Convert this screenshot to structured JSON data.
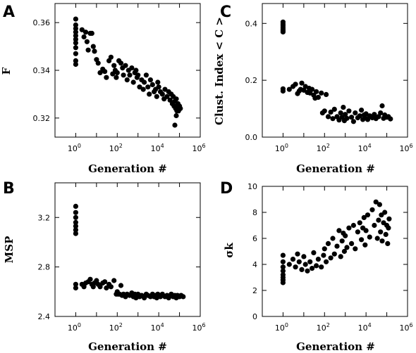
{
  "chart_data": [
    {
      "type": "scatter",
      "panel_label": "A",
      "xlabel": "Generation #",
      "ylabel": "F",
      "x_scale": "log",
      "xlim": [
        0.1,
        1000000
      ],
      "ylim": [
        0.312,
        0.368
      ],
      "xtick_exponents": [
        "0",
        "2",
        "4",
        "6"
      ],
      "ytick_values": [
        0.32,
        0.34,
        0.36
      ],
      "ytick_labels": [
        "0.32",
        "0.34",
        "0.36"
      ],
      "marker_color": "#000000",
      "points": [
        [
          1,
          0.3615
        ],
        [
          1,
          0.359
        ],
        [
          1,
          0.3575
        ],
        [
          1,
          0.356
        ],
        [
          1,
          0.3545
        ],
        [
          1,
          0.353
        ],
        [
          1,
          0.3515
        ],
        [
          1,
          0.3495
        ],
        [
          1,
          0.347
        ],
        [
          1,
          0.344
        ],
        [
          1,
          0.3425
        ],
        [
          2,
          0.357
        ],
        [
          2.5,
          0.354
        ],
        [
          3,
          0.356
        ],
        [
          3.5,
          0.352
        ],
        [
          4,
          0.3485
        ],
        [
          5,
          0.3555
        ],
        [
          6,
          0.3555
        ],
        [
          7,
          0.35
        ],
        [
          8,
          0.348
        ],
        [
          10,
          0.3445
        ],
        [
          12,
          0.343
        ],
        [
          15,
          0.339
        ],
        [
          20,
          0.3405
        ],
        [
          25,
          0.3395
        ],
        [
          30,
          0.337
        ],
        [
          40,
          0.344
        ],
        [
          50,
          0.3455
        ],
        [
          60,
          0.3385
        ],
        [
          70,
          0.342
        ],
        [
          80,
          0.34
        ],
        [
          90,
          0.337
        ],
        [
          100,
          0.339
        ],
        [
          120,
          0.344
        ],
        [
          150,
          0.343
        ],
        [
          180,
          0.341
        ],
        [
          200,
          0.338
        ],
        [
          250,
          0.342
        ],
        [
          300,
          0.336
        ],
        [
          350,
          0.34
        ],
        [
          400,
          0.338
        ],
        [
          500,
          0.341
        ],
        [
          600,
          0.335
        ],
        [
          700,
          0.339
        ],
        [
          800,
          0.34
        ],
        [
          900,
          0.337
        ],
        [
          1000,
          0.338
        ],
        [
          1200,
          0.333
        ],
        [
          1500,
          0.336
        ],
        [
          1800,
          0.332
        ],
        [
          2000,
          0.335
        ],
        [
          2500,
          0.338
        ],
        [
          3000,
          0.333
        ],
        [
          3500,
          0.33
        ],
        [
          4000,
          0.336
        ],
        [
          5000,
          0.334
        ],
        [
          6000,
          0.331
        ],
        [
          7000,
          0.332
        ],
        [
          8000,
          0.329
        ],
        [
          9000,
          0.335
        ],
        [
          10000,
          0.333
        ],
        [
          12000,
          0.331
        ],
        [
          15000,
          0.33
        ],
        [
          18000,
          0.328
        ],
        [
          20000,
          0.332
        ],
        [
          25000,
          0.329
        ],
        [
          30000,
          0.331
        ],
        [
          35000,
          0.3275
        ],
        [
          40000,
          0.33
        ],
        [
          45000,
          0.326
        ],
        [
          50000,
          0.329
        ],
        [
          55000,
          0.325
        ],
        [
          60000,
          0.327
        ],
        [
          65000,
          0.324
        ],
        [
          70000,
          0.328
        ],
        [
          75000,
          0.323
        ],
        [
          80000,
          0.325
        ],
        [
          85000,
          0.326
        ],
        [
          90000,
          0.323
        ],
        [
          100000,
          0.325
        ],
        [
          60000,
          0.317
        ],
        [
          110000,
          0.324
        ],
        [
          70000,
          0.321
        ]
      ]
    },
    {
      "type": "scatter",
      "panel_label": "B",
      "xlabel": "Generation #",
      "ylabel": "MSP",
      "x_scale": "log",
      "xlim": [
        0.1,
        1000000
      ],
      "ylim": [
        2.4,
        3.48
      ],
      "xtick_exponents": [
        "0",
        "2",
        "4",
        "6"
      ],
      "ytick_values": [
        2.4,
        2.8,
        3.2
      ],
      "ytick_labels": [
        "2.4",
        "2.8",
        "3.2"
      ],
      "marker_color": "#000000",
      "points": [
        [
          1,
          3.29
        ],
        [
          1,
          3.24
        ],
        [
          1,
          3.2
        ],
        [
          1,
          3.16
        ],
        [
          1,
          3.13
        ],
        [
          1,
          3.1
        ],
        [
          1,
          3.07
        ],
        [
          1,
          2.66
        ],
        [
          1,
          2.63
        ],
        [
          2,
          2.66
        ],
        [
          2.5,
          2.64
        ],
        [
          3,
          2.67
        ],
        [
          4,
          2.68
        ],
        [
          5,
          2.7
        ],
        [
          6,
          2.66
        ],
        [
          7,
          2.64
        ],
        [
          8,
          2.67
        ],
        [
          10,
          2.69
        ],
        [
          12,
          2.66
        ],
        [
          15,
          2.64
        ],
        [
          20,
          2.67
        ],
        [
          25,
          2.68
        ],
        [
          30,
          2.63
        ],
        [
          40,
          2.66
        ],
        [
          50,
          2.64
        ],
        [
          70,
          2.69
        ],
        [
          90,
          2.58
        ],
        [
          100,
          2.6
        ],
        [
          110,
          2.58
        ],
        [
          130,
          2.58
        ],
        [
          150,
          2.65
        ],
        [
          170,
          2.57
        ],
        [
          200,
          2.58
        ],
        [
          250,
          2.56
        ],
        [
          300,
          2.58
        ],
        [
          400,
          2.57
        ],
        [
          500,
          2.59
        ],
        [
          600,
          2.56
        ],
        [
          700,
          2.58
        ],
        [
          800,
          2.55
        ],
        [
          900,
          2.57
        ],
        [
          1000,
          2.58
        ],
        [
          1200,
          2.56
        ],
        [
          1500,
          2.57
        ],
        [
          2000,
          2.55
        ],
        [
          2500,
          2.58
        ],
        [
          3000,
          2.57
        ],
        [
          4000,
          2.56
        ],
        [
          5000,
          2.58
        ],
        [
          6000,
          2.56
        ],
        [
          7000,
          2.57
        ],
        [
          8000,
          2.55
        ],
        [
          9000,
          2.58
        ],
        [
          10000,
          2.57
        ],
        [
          12000,
          2.56
        ],
        [
          15000,
          2.58
        ],
        [
          20000,
          2.56
        ],
        [
          25000,
          2.57
        ],
        [
          30000,
          2.55
        ],
        [
          40000,
          2.58
        ],
        [
          50000,
          2.56
        ],
        [
          60000,
          2.57
        ],
        [
          70000,
          2.55
        ],
        [
          80000,
          2.57
        ],
        [
          100000,
          2.56
        ],
        [
          120000,
          2.57
        ],
        [
          150000,
          2.56
        ]
      ]
    },
    {
      "type": "scatter",
      "panel_label": "C",
      "xlabel": "Generation #",
      "ylabel": "Clust. Index < C >",
      "x_scale": "log",
      "xlim": [
        0.1,
        1000000
      ],
      "ylim": [
        0,
        0.47
      ],
      "xtick_exponents": [
        "0",
        "2",
        "4",
        "6"
      ],
      "ytick_values": [
        0.0,
        0.2,
        0.4
      ],
      "ytick_labels": [
        "0.0",
        "0.2",
        "0.4"
      ],
      "marker_color": "#000000",
      "points": [
        [
          1,
          0.405
        ],
        [
          1,
          0.398
        ],
        [
          1,
          0.392
        ],
        [
          1,
          0.386
        ],
        [
          1,
          0.38
        ],
        [
          1,
          0.374
        ],
        [
          1,
          0.37
        ],
        [
          1,
          0.17
        ],
        [
          1,
          0.162
        ],
        [
          2,
          0.168
        ],
        [
          3,
          0.178
        ],
        [
          4,
          0.186
        ],
        [
          5,
          0.153
        ],
        [
          6,
          0.162
        ],
        [
          7,
          0.168
        ],
        [
          8,
          0.19
        ],
        [
          10,
          0.165
        ],
        [
          12,
          0.178
        ],
        [
          15,
          0.157
        ],
        [
          18,
          0.172
        ],
        [
          20,
          0.155
        ],
        [
          25,
          0.168
        ],
        [
          30,
          0.148
        ],
        [
          35,
          0.137
        ],
        [
          40,
          0.16
        ],
        [
          50,
          0.14
        ],
        [
          70,
          0.155
        ],
        [
          80,
          0.085
        ],
        [
          100,
          0.092
        ],
        [
          120,
          0.15
        ],
        [
          150,
          0.072
        ],
        [
          200,
          0.088
        ],
        [
          250,
          0.065
        ],
        [
          300,
          0.098
        ],
        [
          400,
          0.072
        ],
        [
          500,
          0.06
        ],
        [
          600,
          0.085
        ],
        [
          700,
          0.07
        ],
        [
          800,
          0.105
        ],
        [
          900,
          0.058
        ],
        [
          1000,
          0.08
        ],
        [
          1200,
          0.066
        ],
        [
          1500,
          0.092
        ],
        [
          2000,
          0.07
        ],
        [
          2500,
          0.055
        ],
        [
          3000,
          0.085
        ],
        [
          4000,
          0.068
        ],
        [
          5000,
          0.075
        ],
        [
          6000,
          0.095
        ],
        [
          7000,
          0.062
        ],
        [
          8000,
          0.078
        ],
        [
          9000,
          0.068
        ],
        [
          10000,
          0.082
        ],
        [
          12000,
          0.062
        ],
        [
          15000,
          0.075
        ],
        [
          20000,
          0.068
        ],
        [
          25000,
          0.08
        ],
        [
          30000,
          0.065
        ],
        [
          40000,
          0.072
        ],
        [
          50000,
          0.085
        ],
        [
          60000,
          0.11
        ],
        [
          70000,
          0.066
        ],
        [
          80000,
          0.078
        ],
        [
          100000,
          0.07
        ],
        [
          120000,
          0.072
        ],
        [
          150000,
          0.064
        ]
      ]
    },
    {
      "type": "scatter",
      "panel_label": "D",
      "xlabel": "Generation #",
      "ylabel": "σk",
      "x_scale": "log",
      "xlim": [
        0.1,
        1000000
      ],
      "ylim": [
        0,
        10
      ],
      "xtick_exponents": [
        "0",
        "2",
        "4",
        "6"
      ],
      "ytick_values": [
        0,
        2,
        4,
        6,
        8,
        10
      ],
      "ytick_labels": [
        "0",
        "2",
        "4",
        "6",
        "8",
        "10"
      ],
      "marker_color": "#000000",
      "points": [
        [
          1,
          4.7
        ],
        [
          1,
          4.2
        ],
        [
          1,
          3.8
        ],
        [
          1,
          3.5
        ],
        [
          1,
          3.2
        ],
        [
          1,
          3.0
        ],
        [
          1,
          2.8
        ],
        [
          1,
          2.6
        ],
        [
          2,
          4.0
        ],
        [
          3,
          4.4
        ],
        [
          4,
          3.8
        ],
        [
          5,
          4.8
        ],
        [
          6,
          4.2
        ],
        [
          8,
          3.6
        ],
        [
          10,
          4.6
        ],
        [
          12,
          4.0
        ],
        [
          15,
          3.5
        ],
        [
          20,
          4.2
        ],
        [
          25,
          3.7
        ],
        [
          30,
          4.9
        ],
        [
          40,
          3.9
        ],
        [
          50,
          4.4
        ],
        [
          70,
          3.8
        ],
        [
          90,
          4.7
        ],
        [
          100,
          5.2
        ],
        [
          120,
          4.2
        ],
        [
          150,
          5.6
        ],
        [
          200,
          4.5
        ],
        [
          250,
          6.0
        ],
        [
          300,
          4.8
        ],
        [
          400,
          5.4
        ],
        [
          500,
          6.6
        ],
        [
          600,
          4.6
        ],
        [
          700,
          5.8
        ],
        [
          800,
          6.4
        ],
        [
          900,
          5.0
        ],
        [
          1000,
          6.2
        ],
        [
          1200,
          5.3
        ],
        [
          1500,
          6.8
        ],
        [
          2000,
          5.6
        ],
        [
          2500,
          7.0
        ],
        [
          3000,
          5.2
        ],
        [
          4000,
          6.5
        ],
        [
          5000,
          7.2
        ],
        [
          6000,
          5.9
        ],
        [
          7000,
          6.8
        ],
        [
          8000,
          7.6
        ],
        [
          9000,
          5.5
        ],
        [
          10000,
          6.6
        ],
        [
          12000,
          7.8
        ],
        [
          15000,
          6.1
        ],
        [
          20000,
          8.2
        ],
        [
          25000,
          7.0
        ],
        [
          30000,
          8.8
        ],
        [
          35000,
          6.0
        ],
        [
          40000,
          7.4
        ],
        [
          45000,
          8.6
        ],
        [
          50000,
          6.5
        ],
        [
          55000,
          7.8
        ],
        [
          60000,
          5.8
        ],
        [
          70000,
          7.2
        ],
        [
          80000,
          8.0
        ],
        [
          90000,
          6.3
        ],
        [
          100000,
          7.0
        ],
        [
          110000,
          5.6
        ],
        [
          120000,
          6.8
        ],
        [
          130000,
          7.5
        ]
      ]
    }
  ]
}
